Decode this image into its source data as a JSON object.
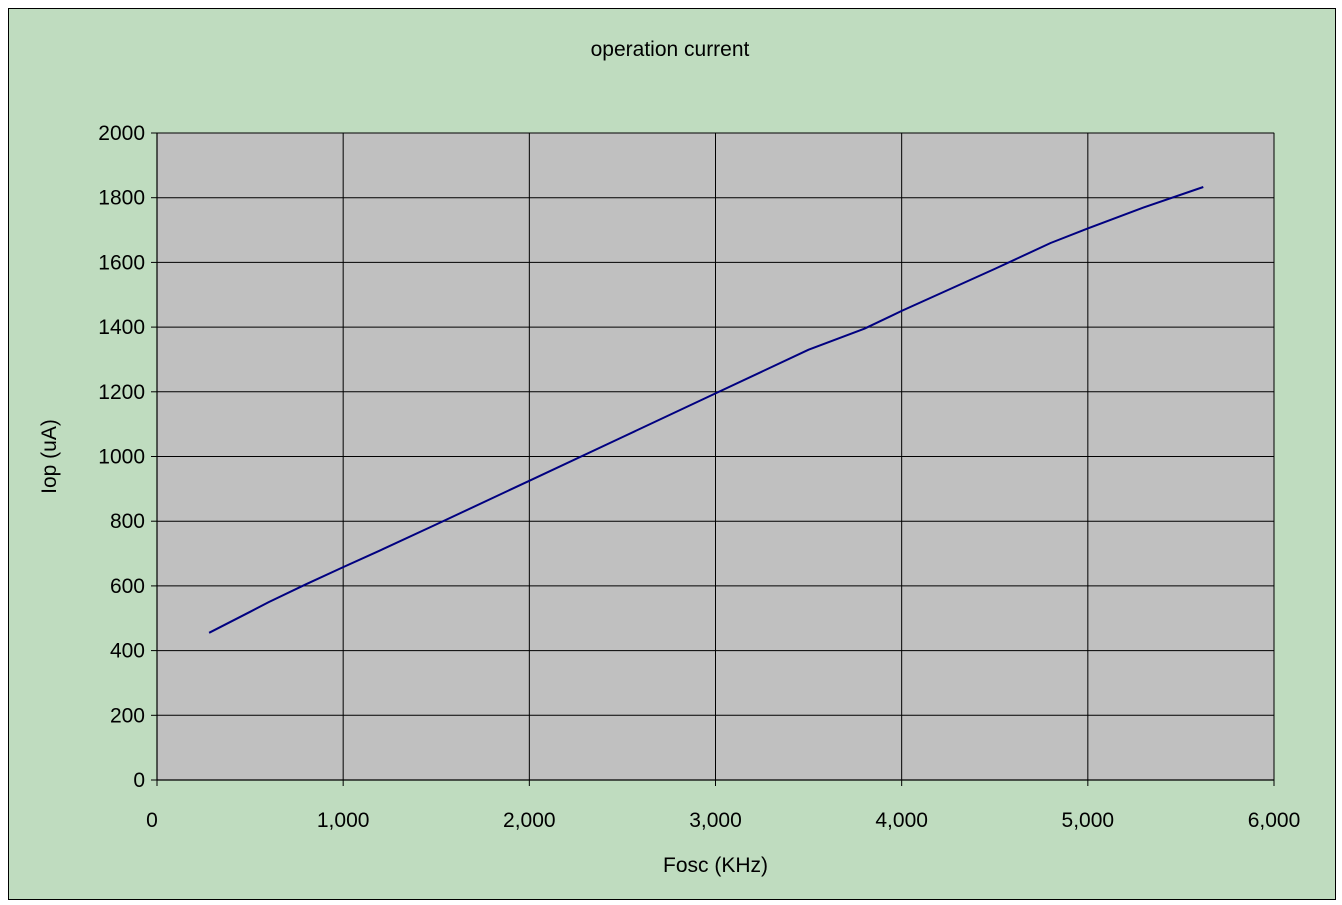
{
  "chart_data": {
    "type": "line",
    "title": "operation current",
    "xlabel": "Fosc (KHz)",
    "ylabel": "Iop (uA)",
    "xlim": [
      0,
      6000
    ],
    "ylim": [
      0,
      2000
    ],
    "x_ticks": [
      0,
      1000,
      2000,
      3000,
      4000,
      5000,
      6000
    ],
    "x_tick_labels": [
      "0",
      "1,000",
      "2,000",
      "3,000",
      "4,000",
      "5,000",
      "6,000"
    ],
    "y_ticks": [
      0,
      200,
      400,
      600,
      800,
      1000,
      1200,
      1400,
      1600,
      1800,
      2000
    ],
    "y_tick_labels": [
      "0",
      "200",
      "400",
      "600",
      "800",
      "1000",
      "1200",
      "1400",
      "1600",
      "1800",
      "2000"
    ],
    "grid": true,
    "legend": "none",
    "colors": {
      "background": "#bfdcbf",
      "plot_area": "#c0c0c0",
      "line": "#000080",
      "grid": "#000000"
    },
    "series": [
      {
        "x": [
          280,
          500,
          600,
          800,
          1000,
          1200,
          1500,
          2000,
          2500,
          3000,
          3500,
          3800,
          4000,
          4500,
          4800,
          5000,
          5300,
          5620
        ],
        "y": [
          455,
          520,
          550,
          605,
          658,
          710,
          790,
          925,
          1060,
          1195,
          1330,
          1395,
          1450,
          1580,
          1660,
          1705,
          1770,
          1833
        ]
      }
    ]
  }
}
